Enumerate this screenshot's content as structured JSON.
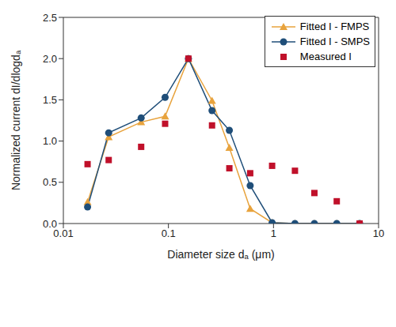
{
  "chart_data": {
    "type": "line",
    "x_label": "Diameter size dₐ (μm)",
    "y_label": "Normalized current dI/dlogdₐ",
    "log": "x",
    "grid": false,
    "legend": "top-right",
    "x": [
      0.017,
      0.027,
      0.055,
      0.093,
      0.155,
      0.26,
      0.38,
      0.6,
      0.97,
      1.6,
      2.45,
      4.0,
      6.6
    ],
    "xlim": [
      0.01,
      10
    ],
    "xticks": [
      0.01,
      0.1,
      1,
      10
    ],
    "ylim": [
      0,
      2.5
    ],
    "yticks": [
      {
        "value": 0,
        "label": "0.0"
      },
      {
        "value": 0.5,
        "label": "0.5"
      },
      {
        "value": 1,
        "label": "1.0"
      },
      {
        "value": 1.5,
        "label": "1.5"
      },
      {
        "value": 2,
        "label": "2.0"
      },
      {
        "value": 2.5,
        "label": "2.5"
      }
    ],
    "series": [
      {
        "name": "Fitted I - FMPS",
        "type": "line",
        "color": "#e8a33d",
        "marker": "triangle",
        "line_style": "solid",
        "values": [
          0.26,
          1.05,
          1.23,
          1.3,
          2.0,
          1.49,
          0.92,
          0.18,
          0.01,
          0,
          0,
          0,
          0
        ]
      },
      {
        "name": "Fitted I - SMPS",
        "type": "line",
        "color": "#1f4e79",
        "marker": "circle",
        "line_style": "solid",
        "values": [
          0.2,
          1.1,
          1.28,
          1.53,
          2.0,
          1.37,
          1.13,
          0.46,
          0.01,
          0,
          0,
          0,
          0
        ]
      },
      {
        "name": "Measured I",
        "type": "scatter",
        "color": "#c0102a",
        "marker": "square",
        "line_style": "none",
        "values": [
          0.72,
          0.77,
          0.93,
          1.21,
          2.0,
          1.19,
          0.67,
          0.61,
          0.7,
          0.64,
          0.37,
          0.27,
          0.0
        ]
      }
    ]
  }
}
